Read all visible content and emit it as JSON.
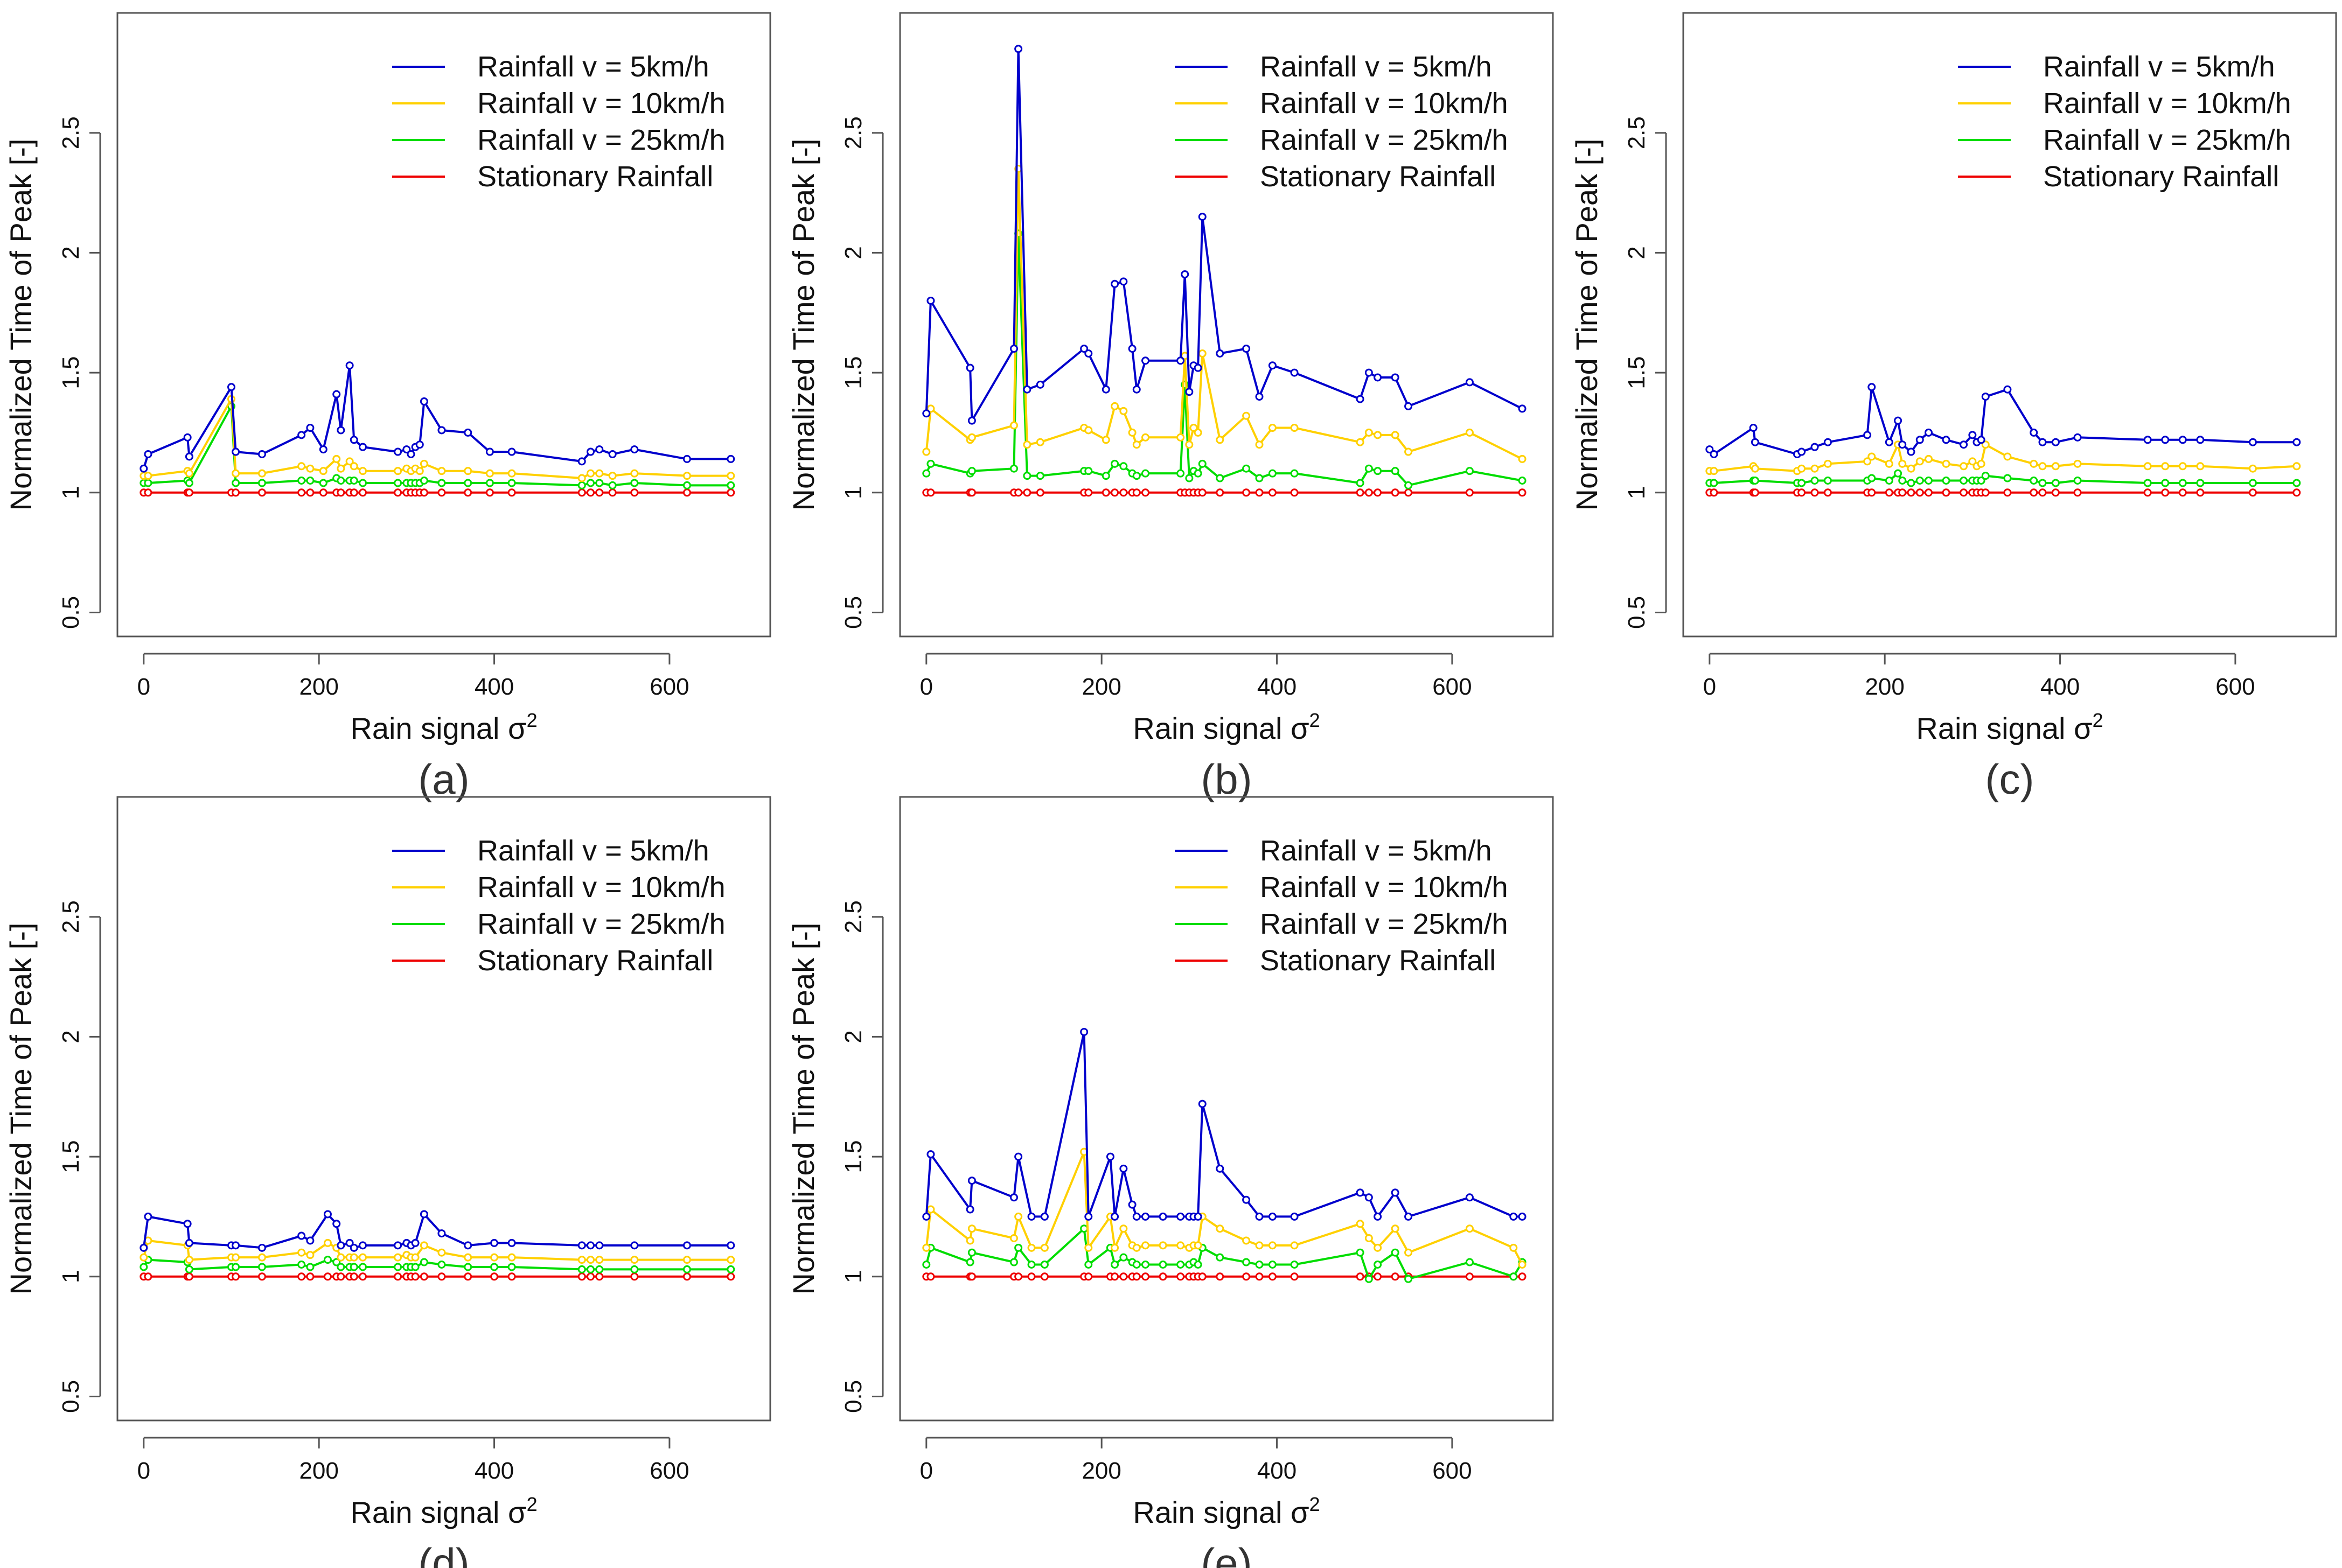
{
  "figure": {
    "panel_labels": [
      "(a)",
      "(b)",
      "(c)",
      "(d)",
      "(e)"
    ]
  },
  "chart_data": [
    {
      "type": "line",
      "panel": "(a)",
      "xlabel": "Rain signal σ",
      "xlabel_superscript": "2",
      "ylabel": "Normalized Time of Peak [-]",
      "xlim": [
        -30,
        715
      ],
      "ylim": [
        0.4,
        3.0
      ],
      "xticks": [
        0,
        200,
        400,
        600
      ],
      "xtick_labels": [
        "0",
        "200",
        "400",
        "600"
      ],
      "yticks": [
        0.5,
        1,
        1.5,
        2,
        2.5
      ],
      "ytick_labels": [
        "0.5",
        "1",
        "1.5",
        "2",
        "2.5"
      ],
      "legend_position": "top-right",
      "x": [
        0,
        5,
        50,
        52,
        100,
        105,
        135,
        180,
        190,
        205,
        220,
        225,
        235,
        240,
        250,
        290,
        300,
        305,
        310,
        315,
        320,
        340,
        370,
        395,
        420,
        500,
        510,
        520,
        535,
        560,
        620,
        670
      ],
      "series": [
        {
          "name": "Rainfall v = 5km/h",
          "color": "#0000cc",
          "values": [
            1.1,
            1.16,
            1.23,
            1.15,
            1.44,
            1.17,
            1.16,
            1.24,
            1.27,
            1.18,
            1.41,
            1.26,
            1.53,
            1.22,
            1.19,
            1.17,
            1.18,
            1.16,
            1.19,
            1.2,
            1.38,
            1.26,
            1.25,
            1.17,
            1.17,
            1.13,
            1.17,
            1.18,
            1.16,
            1.18,
            1.14,
            1.14
          ]
        },
        {
          "name": "Rainfall v = 10km/h",
          "color": "#ffd000",
          "values": [
            1.07,
            1.07,
            1.09,
            1.08,
            1.39,
            1.08,
            1.08,
            1.11,
            1.1,
            1.09,
            1.14,
            1.1,
            1.13,
            1.11,
            1.09,
            1.09,
            1.1,
            1.09,
            1.1,
            1.09,
            1.12,
            1.09,
            1.09,
            1.08,
            1.08,
            1.06,
            1.08,
            1.08,
            1.07,
            1.08,
            1.07,
            1.07
          ]
        },
        {
          "name": "Rainfall v = 25km/h",
          "color": "#00dd00",
          "values": [
            1.04,
            1.04,
            1.05,
            1.04,
            1.36,
            1.04,
            1.04,
            1.05,
            1.05,
            1.04,
            1.06,
            1.05,
            1.05,
            1.05,
            1.04,
            1.04,
            1.04,
            1.04,
            1.04,
            1.04,
            1.05,
            1.04,
            1.04,
            1.04,
            1.04,
            1.03,
            1.04,
            1.04,
            1.03,
            1.04,
            1.03,
            1.03
          ]
        },
        {
          "name": "Stationary Rainfall",
          "color": "#ee0000",
          "values": [
            1,
            1,
            1,
            1,
            1,
            1,
            1,
            1,
            1,
            1,
            1,
            1,
            1,
            1,
            1,
            1,
            1,
            1,
            1,
            1,
            1,
            1,
            1,
            1,
            1,
            1,
            1,
            1,
            1,
            1,
            1,
            1
          ]
        }
      ]
    },
    {
      "type": "line",
      "panel": "(b)",
      "xlabel": "Rain signal σ",
      "xlabel_superscript": "2",
      "ylabel": "Normalized Time of Peak [-]",
      "xlim": [
        -30,
        715
      ],
      "ylim": [
        0.4,
        3.0
      ],
      "xticks": [
        0,
        200,
        400,
        600
      ],
      "xtick_labels": [
        "0",
        "200",
        "400",
        "600"
      ],
      "yticks": [
        0.5,
        1,
        1.5,
        2,
        2.5
      ],
      "ytick_labels": [
        "0.5",
        "1",
        "1.5",
        "2",
        "2.5"
      ],
      "legend_position": "top-right",
      "x": [
        0,
        5,
        50,
        52,
        100,
        105,
        115,
        130,
        180,
        185,
        205,
        215,
        225,
        235,
        240,
        250,
        290,
        295,
        300,
        305,
        310,
        315,
        335,
        365,
        380,
        395,
        420,
        495,
        505,
        515,
        535,
        550,
        620,
        680
      ],
      "series": [
        {
          "name": "Rainfall v = 5km/h",
          "color": "#0000cc",
          "values": [
            1.33,
            1.8,
            1.52,
            1.3,
            1.6,
            2.85,
            1.43,
            1.45,
            1.6,
            1.58,
            1.43,
            1.87,
            1.88,
            1.6,
            1.43,
            1.55,
            1.55,
            1.91,
            1.42,
            1.53,
            1.52,
            2.15,
            1.58,
            1.6,
            1.4,
            1.53,
            1.5,
            1.39,
            1.5,
            1.48,
            1.48,
            1.36,
            1.46,
            1.35
          ]
        },
        {
          "name": "Rainfall v = 10km/h",
          "color": "#ffd000",
          "values": [
            1.17,
            1.35,
            1.22,
            1.23,
            1.28,
            2.35,
            1.2,
            1.21,
            1.27,
            1.26,
            1.22,
            1.36,
            1.34,
            1.25,
            1.2,
            1.23,
            1.23,
            1.57,
            1.2,
            1.27,
            1.25,
            1.58,
            1.22,
            1.32,
            1.2,
            1.27,
            1.27,
            1.21,
            1.25,
            1.24,
            1.24,
            1.17,
            1.25,
            1.14
          ]
        },
        {
          "name": "Rainfall v = 25km/h",
          "color": "#00dd00",
          "values": [
            1.08,
            1.12,
            1.08,
            1.09,
            1.1,
            2.08,
            1.07,
            1.07,
            1.09,
            1.09,
            1.07,
            1.12,
            1.11,
            1.08,
            1.07,
            1.08,
            1.08,
            1.45,
            1.06,
            1.09,
            1.08,
            1.12,
            1.06,
            1.1,
            1.06,
            1.08,
            1.08,
            1.04,
            1.1,
            1.09,
            1.09,
            1.03,
            1.09,
            1.05
          ]
        },
        {
          "name": "Stationary Rainfall",
          "color": "#ee0000",
          "values": [
            1,
            1,
            1,
            1,
            1,
            1,
            1,
            1,
            1,
            1,
            1,
            1,
            1,
            1,
            1,
            1,
            1,
            1,
            1,
            1,
            1,
            1,
            1,
            1,
            1,
            1,
            1,
            1,
            1,
            1,
            1,
            1,
            1,
            1
          ]
        }
      ]
    },
    {
      "type": "line",
      "panel": "(c)",
      "xlabel": "Rain signal σ",
      "xlabel_superscript": "2",
      "ylabel": "Normalized Time of Peak [-]",
      "xlim": [
        -30,
        715
      ],
      "ylim": [
        0.4,
        3.0
      ],
      "xticks": [
        0,
        200,
        400,
        600
      ],
      "xtick_labels": [
        "0",
        "200",
        "400",
        "600"
      ],
      "yticks": [
        0.5,
        1,
        1.5,
        2,
        2.5
      ],
      "ytick_labels": [
        "0.5",
        "1",
        "1.5",
        "2",
        "2.5"
      ],
      "legend_position": "top-right",
      "x": [
        0,
        5,
        50,
        52,
        100,
        105,
        120,
        135,
        180,
        185,
        205,
        215,
        220,
        230,
        240,
        250,
        270,
        290,
        300,
        305,
        310,
        315,
        340,
        370,
        380,
        395,
        420,
        500,
        520,
        540,
        560,
        620,
        670
      ],
      "series": [
        {
          "name": "Rainfall v = 5km/h",
          "color": "#0000cc",
          "values": [
            1.18,
            1.16,
            1.27,
            1.21,
            1.16,
            1.17,
            1.19,
            1.21,
            1.24,
            1.44,
            1.21,
            1.3,
            1.2,
            1.17,
            1.22,
            1.25,
            1.22,
            1.2,
            1.24,
            1.21,
            1.22,
            1.4,
            1.43,
            1.25,
            1.21,
            1.21,
            1.23,
            1.22,
            1.22,
            1.22,
            1.22,
            1.21,
            1.21
          ]
        },
        {
          "name": "Rainfall v = 10km/h",
          "color": "#ffd000",
          "values": [
            1.09,
            1.09,
            1.11,
            1.1,
            1.09,
            1.1,
            1.1,
            1.12,
            1.13,
            1.15,
            1.12,
            1.2,
            1.12,
            1.1,
            1.13,
            1.14,
            1.12,
            1.11,
            1.13,
            1.11,
            1.12,
            1.2,
            1.15,
            1.12,
            1.11,
            1.11,
            1.12,
            1.11,
            1.11,
            1.11,
            1.11,
            1.1,
            1.11
          ]
        },
        {
          "name": "Rainfall v = 25km/h",
          "color": "#00dd00",
          "values": [
            1.04,
            1.04,
            1.05,
            1.05,
            1.04,
            1.04,
            1.05,
            1.05,
            1.05,
            1.06,
            1.05,
            1.08,
            1.05,
            1.04,
            1.05,
            1.05,
            1.05,
            1.05,
            1.05,
            1.05,
            1.05,
            1.07,
            1.06,
            1.05,
            1.04,
            1.04,
            1.05,
            1.04,
            1.04,
            1.04,
            1.04,
            1.04,
            1.04
          ]
        },
        {
          "name": "Stationary Rainfall",
          "color": "#ee0000",
          "values": [
            1,
            1,
            1,
            1,
            1,
            1,
            1,
            1,
            1,
            1,
            1,
            1,
            1,
            1,
            1,
            1,
            1,
            1,
            1,
            1,
            1,
            1,
            1,
            1,
            1,
            1,
            1,
            1,
            1,
            1,
            1,
            1,
            1
          ]
        }
      ]
    },
    {
      "type": "line",
      "panel": "(d)",
      "xlabel": "Rain signal σ",
      "xlabel_superscript": "2",
      "ylabel": "Normalized Time of Peak [-]",
      "xlim": [
        -30,
        715
      ],
      "ylim": [
        0.4,
        3.0
      ],
      "xticks": [
        0,
        200,
        400,
        600
      ],
      "xtick_labels": [
        "0",
        "200",
        "400",
        "600"
      ],
      "yticks": [
        0.5,
        1,
        1.5,
        2,
        2.5
      ],
      "ytick_labels": [
        "0.5",
        "1",
        "1.5",
        "2",
        "2.5"
      ],
      "legend_position": "top-right",
      "x": [
        0,
        5,
        50,
        52,
        100,
        105,
        135,
        180,
        190,
        210,
        220,
        225,
        235,
        240,
        250,
        290,
        300,
        305,
        310,
        320,
        340,
        370,
        400,
        420,
        500,
        510,
        520,
        560,
        620,
        670
      ],
      "series": [
        {
          "name": "Rainfall v = 5km/h",
          "color": "#0000cc",
          "values": [
            1.12,
            1.25,
            1.22,
            1.14,
            1.13,
            1.13,
            1.12,
            1.17,
            1.15,
            1.26,
            1.22,
            1.13,
            1.14,
            1.12,
            1.13,
            1.13,
            1.14,
            1.13,
            1.14,
            1.26,
            1.18,
            1.13,
            1.14,
            1.14,
            1.13,
            1.13,
            1.13,
            1.13,
            1.13,
            1.13
          ]
        },
        {
          "name": "Rainfall v = 10km/h",
          "color": "#ffd000",
          "values": [
            1.08,
            1.15,
            1.13,
            1.07,
            1.08,
            1.08,
            1.08,
            1.1,
            1.09,
            1.14,
            1.12,
            1.08,
            1.08,
            1.08,
            1.08,
            1.08,
            1.09,
            1.08,
            1.08,
            1.13,
            1.1,
            1.08,
            1.08,
            1.08,
            1.07,
            1.07,
            1.07,
            1.07,
            1.07,
            1.07
          ]
        },
        {
          "name": "Rainfall v = 25km/h",
          "color": "#00dd00",
          "values": [
            1.04,
            1.07,
            1.06,
            1.03,
            1.04,
            1.04,
            1.04,
            1.05,
            1.04,
            1.07,
            1.06,
            1.04,
            1.04,
            1.04,
            1.04,
            1.04,
            1.04,
            1.04,
            1.04,
            1.06,
            1.05,
            1.04,
            1.04,
            1.04,
            1.03,
            1.03,
            1.03,
            1.03,
            1.03,
            1.03
          ]
        },
        {
          "name": "Stationary Rainfall",
          "color": "#ee0000",
          "values": [
            1,
            1,
            1,
            1,
            1,
            1,
            1,
            1,
            1,
            1,
            1,
            1,
            1,
            1,
            1,
            1,
            1,
            1,
            1,
            1,
            1,
            1,
            1,
            1,
            1,
            1,
            1,
            1,
            1,
            1
          ]
        }
      ]
    },
    {
      "type": "line",
      "panel": "(e)",
      "xlabel": "Rain signal σ",
      "xlabel_superscript": "2",
      "ylabel": "Normalized Time of Peak [-]",
      "xlim": [
        -30,
        715
      ],
      "ylim": [
        0.4,
        3.0
      ],
      "xticks": [
        0,
        200,
        400,
        600
      ],
      "xtick_labels": [
        "0",
        "200",
        "400",
        "600"
      ],
      "yticks": [
        0.5,
        1,
        1.5,
        2,
        2.5
      ],
      "ytick_labels": [
        "0.5",
        "1",
        "1.5",
        "2",
        "2.5"
      ],
      "legend_position": "top-right",
      "x": [
        0,
        5,
        50,
        52,
        100,
        105,
        120,
        135,
        180,
        185,
        210,
        215,
        225,
        235,
        240,
        250,
        270,
        290,
        300,
        305,
        310,
        315,
        335,
        365,
        380,
        395,
        420,
        495,
        505,
        515,
        535,
        550,
        620,
        670,
        680
      ],
      "series": [
        {
          "name": "Rainfall v = 5km/h",
          "color": "#0000cc",
          "values": [
            1.25,
            1.51,
            1.28,
            1.4,
            1.33,
            1.5,
            1.25,
            1.25,
            2.02,
            1.25,
            1.5,
            1.25,
            1.45,
            1.3,
            1.25,
            1.25,
            1.25,
            1.25,
            1.25,
            1.25,
            1.25,
            1.72,
            1.45,
            1.32,
            1.25,
            1.25,
            1.25,
            1.35,
            1.33,
            1.25,
            1.35,
            1.25,
            1.33,
            1.25,
            1.25
          ]
        },
        {
          "name": "Rainfall v = 10km/h",
          "color": "#ffd000",
          "values": [
            1.12,
            1.28,
            1.15,
            1.2,
            1.16,
            1.25,
            1.12,
            1.12,
            1.52,
            1.12,
            1.25,
            1.12,
            1.2,
            1.13,
            1.12,
            1.13,
            1.13,
            1.13,
            1.12,
            1.13,
            1.13,
            1.25,
            1.2,
            1.15,
            1.13,
            1.13,
            1.13,
            1.22,
            1.16,
            1.12,
            1.2,
            1.1,
            1.2,
            1.12,
            1.05
          ]
        },
        {
          "name": "Rainfall v = 25km/h",
          "color": "#00dd00",
          "values": [
            1.05,
            1.12,
            1.06,
            1.1,
            1.06,
            1.12,
            1.05,
            1.05,
            1.2,
            1.05,
            1.12,
            1.05,
            1.08,
            1.06,
            1.05,
            1.05,
            1.05,
            1.05,
            1.05,
            1.06,
            1.05,
            1.12,
            1.08,
            1.06,
            1.05,
            1.05,
            1.05,
            1.1,
            0.99,
            1.05,
            1.1,
            0.99,
            1.06,
            1.0,
            1.06
          ]
        },
        {
          "name": "Stationary Rainfall",
          "color": "#ee0000",
          "values": [
            1,
            1,
            1,
            1,
            1,
            1,
            1,
            1,
            1,
            1,
            1,
            1,
            1,
            1,
            1,
            1,
            1,
            1,
            1,
            1,
            1,
            1,
            1,
            1,
            1,
            1,
            1,
            1,
            1,
            1,
            1,
            1,
            1,
            1,
            1
          ]
        }
      ]
    }
  ]
}
